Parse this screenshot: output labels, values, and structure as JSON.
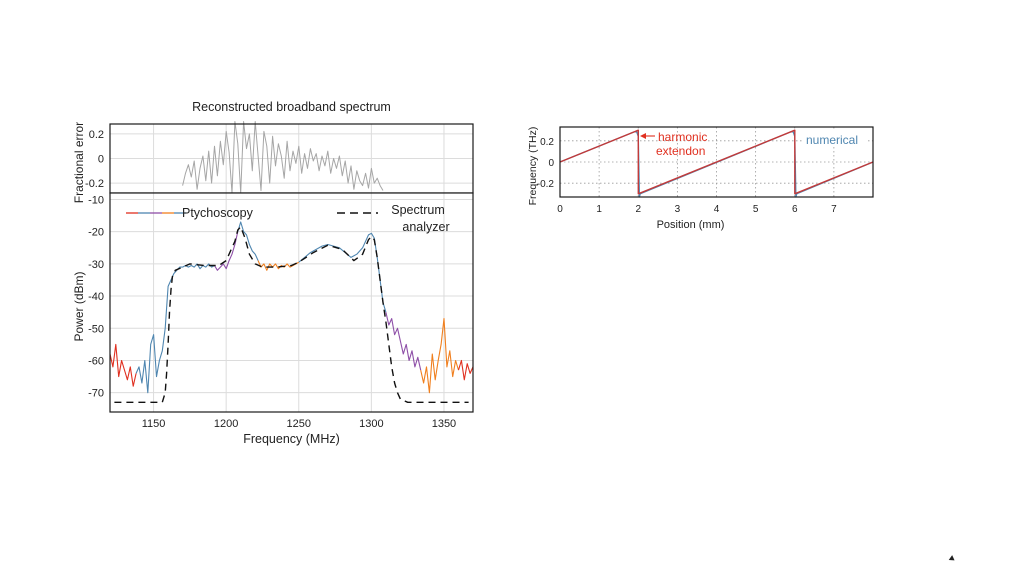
{
  "chart_data": [
    {
      "type": "line",
      "title": "Reconstructed broadband spectrum",
      "ylabel": "Fractional error",
      "xlim": [
        1120,
        1370
      ],
      "ylim": [
        -0.28,
        0.28
      ],
      "yticks": [
        "0.2",
        "0",
        "-0.2"
      ],
      "grid": true,
      "series": [
        {
          "color": "#a6a6a6",
          "x": [
            1170,
            1172,
            1174,
            1176,
            1178,
            1180,
            1182,
            1184,
            1186,
            1188,
            1190,
            1192,
            1194,
            1196,
            1198,
            1200,
            1202,
            1204,
            1206,
            1208,
            1210,
            1212,
            1214,
            1216,
            1218,
            1220,
            1222,
            1224,
            1226,
            1228,
            1230,
            1232,
            1234,
            1236,
            1238,
            1240,
            1242,
            1244,
            1246,
            1248,
            1250,
            1252,
            1254,
            1256,
            1258,
            1260,
            1262,
            1264,
            1266,
            1268,
            1270,
            1272,
            1274,
            1276,
            1278,
            1280,
            1282,
            1284,
            1286,
            1288,
            1290,
            1292,
            1294,
            1296,
            1298,
            1300,
            1302,
            1304,
            1306,
            1308
          ],
          "values": [
            -0.22,
            -0.12,
            -0.05,
            -0.15,
            -0.02,
            -0.25,
            -0.08,
            0.02,
            -0.18,
            0.06,
            -0.2,
            0.1,
            -0.14,
            0.14,
            -0.05,
            0.22,
            0.05,
            -0.28,
            0.3,
            0.12,
            -0.28,
            0.3,
            0.08,
            0.2,
            -0.1,
            0.3,
            0.02,
            -0.26,
            0.22,
            0.1,
            -0.2,
            0.18,
            -0.06,
            0.12,
            0.02,
            -0.16,
            0.14,
            -0.1,
            0.06,
            -0.04,
            0.1,
            -0.12,
            0.04,
            -0.08,
            0.08,
            -0.02,
            0.04,
            -0.1,
            0.02,
            -0.06,
            0.06,
            -0.12,
            0.0,
            -0.08,
            0.02,
            -0.14,
            -0.02,
            -0.2,
            -0.06,
            -0.25,
            -0.1,
            -0.18,
            -0.22,
            -0.12,
            -0.24,
            -0.08,
            -0.2,
            -0.16,
            -0.22,
            -0.26
          ]
        }
      ]
    },
    {
      "type": "line",
      "xlabel": "Frequency (MHz)",
      "ylabel": "Power (dBm)",
      "xlim": [
        1120,
        1370
      ],
      "ylim": [
        -76,
        -8
      ],
      "xticks": [
        "1150",
        "1200",
        "1250",
        "1300",
        "1350"
      ],
      "yticks": [
        "-10",
        "-20",
        "-30",
        "-40",
        "-50",
        "-60",
        "-70"
      ],
      "grid": true,
      "legend": "top",
      "series": [
        {
          "name": "Ptychoscopy",
          "color": "#e03020",
          "x": [
            1120,
            1122,
            1124,
            1126,
            1128,
            1130,
            1132,
            1134,
            1136,
            1138
          ],
          "values": [
            -58,
            -62,
            -55,
            -65,
            -60,
            -63,
            -66,
            -62,
            -68,
            -64
          ]
        },
        {
          "color": "#4f86b0",
          "x": [
            1138,
            1140,
            1142,
            1144,
            1146,
            1148,
            1150,
            1152,
            1154,
            1156,
            1158,
            1160,
            1162,
            1164,
            1166,
            1168,
            1170,
            1172,
            1174,
            1176,
            1178,
            1180,
            1182,
            1184,
            1186,
            1188,
            1190,
            1192
          ],
          "values": [
            -64,
            -62,
            -67,
            -60,
            -70,
            -55,
            -52,
            -65,
            -60,
            -57,
            -50,
            -37,
            -35,
            -33,
            -32,
            -31,
            -31,
            -30.5,
            -31,
            -30.5,
            -31,
            -30,
            -31.5,
            -30.5,
            -31,
            -30,
            -31,
            -30.5
          ]
        },
        {
          "color": "#8e4fa8",
          "x": [
            1192,
            1194,
            1196,
            1198,
            1200,
            1202,
            1204,
            1206,
            1208
          ],
          "values": [
            -30.5,
            -32,
            -31,
            -30,
            -31.5,
            -29,
            -27,
            -24,
            -20
          ]
        },
        {
          "color": "#4f86b0",
          "x": [
            1208,
            1210,
            1212,
            1214,
            1216,
            1218,
            1220,
            1222
          ],
          "values": [
            -20,
            -17,
            -20,
            -21,
            -24,
            -26,
            -27,
            -29
          ]
        },
        {
          "color": "#f07f1e",
          "x": [
            1222,
            1224,
            1226,
            1228,
            1230,
            1232,
            1234,
            1236,
            1238,
            1240,
            1242,
            1244,
            1246,
            1248,
            1250
          ],
          "values": [
            -29,
            -31,
            -30,
            -32,
            -30,
            -31,
            -30,
            -31.5,
            -30.5,
            -31,
            -30,
            -31,
            -30.5,
            -30,
            -29.5
          ]
        },
        {
          "color": "#4f86b0",
          "x": [
            1250,
            1254,
            1258,
            1262,
            1266,
            1270,
            1274,
            1278,
            1282,
            1286,
            1290,
            1294,
            1298,
            1300,
            1302,
            1304,
            1306,
            1308,
            1310
          ],
          "values": [
            -29.5,
            -28,
            -26.5,
            -25.5,
            -24.5,
            -24,
            -24.5,
            -25,
            -26.5,
            -28,
            -27,
            -25,
            -21,
            -20.5,
            -22,
            -28,
            -35,
            -42,
            -45
          ]
        },
        {
          "color": "#8e4fa8",
          "x": [
            1310,
            1312,
            1314,
            1316,
            1318,
            1320,
            1322,
            1324,
            1326,
            1328,
            1330,
            1332,
            1334
          ],
          "values": [
            -45,
            -49,
            -47,
            -52,
            -50,
            -54,
            -58,
            -55,
            -60,
            -57,
            -62,
            -59,
            -63
          ]
        },
        {
          "color": "#f07f1e",
          "x": [
            1334,
            1336,
            1338,
            1340,
            1342,
            1344,
            1346,
            1348,
            1350,
            1352,
            1354,
            1356,
            1358,
            1360
          ],
          "values": [
            -63,
            -67,
            -62,
            -70,
            -58,
            -66,
            -60,
            -55,
            -47,
            -62,
            -57,
            -65,
            -60,
            -63
          ]
        },
        {
          "color": "#e03020",
          "x": [
            1360,
            1362,
            1364,
            1366,
            1368,
            1370
          ],
          "values": [
            -63,
            -60,
            -66,
            -61,
            -64,
            -62
          ]
        },
        {
          "name": "Spectrum analyzer",
          "color": "#111111",
          "dashed": true,
          "x": [
            1123,
            1135,
            1150,
            1156,
            1158,
            1159,
            1160,
            1161,
            1162,
            1163,
            1165,
            1170,
            1175,
            1185,
            1195,
            1200,
            1203,
            1206,
            1208,
            1210,
            1213,
            1216,
            1220,
            1225,
            1235,
            1245,
            1250,
            1260,
            1270,
            1280,
            1288,
            1294,
            1298,
            1300,
            1302,
            1304,
            1306,
            1308,
            1310,
            1312,
            1314,
            1316,
            1318,
            1320,
            1325,
            1367
          ],
          "values": [
            -73,
            -73,
            -73,
            -73,
            -70,
            -64,
            -55,
            -45,
            -38,
            -34,
            -32,
            -31,
            -30,
            -30.5,
            -30.5,
            -29,
            -26,
            -23,
            -19.5,
            -18.5,
            -22,
            -27,
            -30,
            -31,
            -31,
            -30.5,
            -29.5,
            -26.5,
            -24.2,
            -25.5,
            -29,
            -27,
            -22.5,
            -21.5,
            -22.5,
            -28,
            -35,
            -42,
            -48,
            -55,
            -62,
            -67,
            -70,
            -72,
            -73,
            -73
          ]
        }
      ]
    },
    {
      "type": "line",
      "xlabel": "Position (mm)",
      "ylabel": "Frequency (THz)",
      "xlim": [
        0,
        8
      ],
      "ylim": [
        -0.33,
        0.33
      ],
      "xticks": [
        "0",
        "1",
        "2",
        "3",
        "4",
        "5",
        "6",
        "7"
      ],
      "yticks": [
        "0.2",
        "0",
        "-0.2"
      ],
      "grid": true,
      "annotations": [
        {
          "text": "harmonic\nextendon",
          "color": "#e03020"
        },
        {
          "text": "numerical",
          "color": "#4f86b0"
        }
      ],
      "series": [
        {
          "color": "#4f86b0",
          "x": [
            0,
            1.9,
            1.96,
            2.0,
            2.03,
            2.05,
            5.9,
            5.96,
            6.0,
            6.03,
            6.05,
            8.0
          ],
          "values": [
            0.0,
            0.285,
            0.285,
            0.24,
            -0.33,
            -0.3,
            0.285,
            0.285,
            0.24,
            -0.33,
            -0.3,
            0.0
          ]
        },
        {
          "color": "#c23a3a",
          "x": [
            0,
            2.0,
            2.0,
            6.0,
            6.0,
            8.0
          ],
          "values": [
            0.0,
            0.3,
            -0.3,
            0.3,
            -0.3,
            0.0
          ]
        }
      ]
    }
  ]
}
